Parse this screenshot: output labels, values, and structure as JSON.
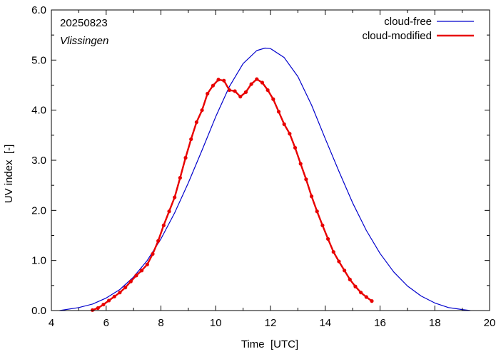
{
  "chart_data": {
    "type": "line",
    "annotations": {
      "date": "20250823",
      "location": "Vlissingen"
    },
    "xlabel": "Time  [UTC]",
    "ylabel": "UV index  [-]",
    "xlim": [
      4,
      20
    ],
    "ylim": [
      0,
      6
    ],
    "xticks": [
      4,
      6,
      8,
      10,
      12,
      14,
      16,
      18,
      20
    ],
    "yticks": [
      0,
      1,
      2,
      3,
      4,
      5,
      6
    ],
    "ytick_labels": [
      "0.0",
      "1.0",
      "2.0",
      "3.0",
      "4.0",
      "5.0",
      "6.0"
    ],
    "legend_position": "top-right",
    "grid": false,
    "series": [
      {
        "name": "cloud-free",
        "color": "#0000cc",
        "points": [
          [
            4.3,
            0.0
          ],
          [
            5.0,
            0.06
          ],
          [
            5.5,
            0.13
          ],
          [
            6.0,
            0.25
          ],
          [
            6.5,
            0.42
          ],
          [
            7.0,
            0.67
          ],
          [
            7.5,
            1.0
          ],
          [
            8.0,
            1.43
          ],
          [
            8.5,
            1.95
          ],
          [
            9.0,
            2.55
          ],
          [
            9.5,
            3.2
          ],
          [
            10.0,
            3.87
          ],
          [
            10.5,
            4.47
          ],
          [
            11.0,
            4.93
          ],
          [
            11.5,
            5.19
          ],
          [
            11.8,
            5.24
          ],
          [
            12.0,
            5.23
          ],
          [
            12.5,
            5.05
          ],
          [
            13.0,
            4.67
          ],
          [
            13.5,
            4.1
          ],
          [
            14.0,
            3.43
          ],
          [
            14.5,
            2.78
          ],
          [
            15.0,
            2.15
          ],
          [
            15.5,
            1.6
          ],
          [
            16.0,
            1.14
          ],
          [
            16.5,
            0.77
          ],
          [
            17.0,
            0.49
          ],
          [
            17.5,
            0.29
          ],
          [
            18.0,
            0.15
          ],
          [
            18.5,
            0.06
          ],
          [
            19.0,
            0.02
          ],
          [
            19.3,
            0.0
          ]
        ]
      },
      {
        "name": "cloud-modified",
        "color": "#e80000",
        "points": [
          [
            5.5,
            0.01
          ],
          [
            5.7,
            0.05
          ],
          [
            5.9,
            0.12
          ],
          [
            6.1,
            0.2
          ],
          [
            6.3,
            0.28
          ],
          [
            6.5,
            0.36
          ],
          [
            6.7,
            0.46
          ],
          [
            6.9,
            0.58
          ],
          [
            7.1,
            0.7
          ],
          [
            7.3,
            0.8
          ],
          [
            7.5,
            0.92
          ],
          [
            7.7,
            1.13
          ],
          [
            7.9,
            1.39
          ],
          [
            8.1,
            1.7
          ],
          [
            8.3,
            1.98
          ],
          [
            8.5,
            2.26
          ],
          [
            8.7,
            2.65
          ],
          [
            8.9,
            3.05
          ],
          [
            9.1,
            3.42
          ],
          [
            9.3,
            3.76
          ],
          [
            9.5,
            4.0
          ],
          [
            9.7,
            4.33
          ],
          [
            9.9,
            4.49
          ],
          [
            10.1,
            4.61
          ],
          [
            10.3,
            4.59
          ],
          [
            10.5,
            4.4
          ],
          [
            10.7,
            4.38
          ],
          [
            10.9,
            4.27
          ],
          [
            11.1,
            4.36
          ],
          [
            11.3,
            4.52
          ],
          [
            11.5,
            4.62
          ],
          [
            11.7,
            4.55
          ],
          [
            11.9,
            4.4
          ],
          [
            12.1,
            4.22
          ],
          [
            12.3,
            3.97
          ],
          [
            12.5,
            3.72
          ],
          [
            12.7,
            3.53
          ],
          [
            12.9,
            3.25
          ],
          [
            13.1,
            2.93
          ],
          [
            13.3,
            2.62
          ],
          [
            13.5,
            2.28
          ],
          [
            13.7,
            1.98
          ],
          [
            13.9,
            1.7
          ],
          [
            14.1,
            1.43
          ],
          [
            14.3,
            1.17
          ],
          [
            14.5,
            0.98
          ],
          [
            14.7,
            0.8
          ],
          [
            14.9,
            0.62
          ],
          [
            15.1,
            0.48
          ],
          [
            15.3,
            0.36
          ],
          [
            15.5,
            0.27
          ],
          [
            15.7,
            0.19
          ]
        ]
      }
    ]
  }
}
